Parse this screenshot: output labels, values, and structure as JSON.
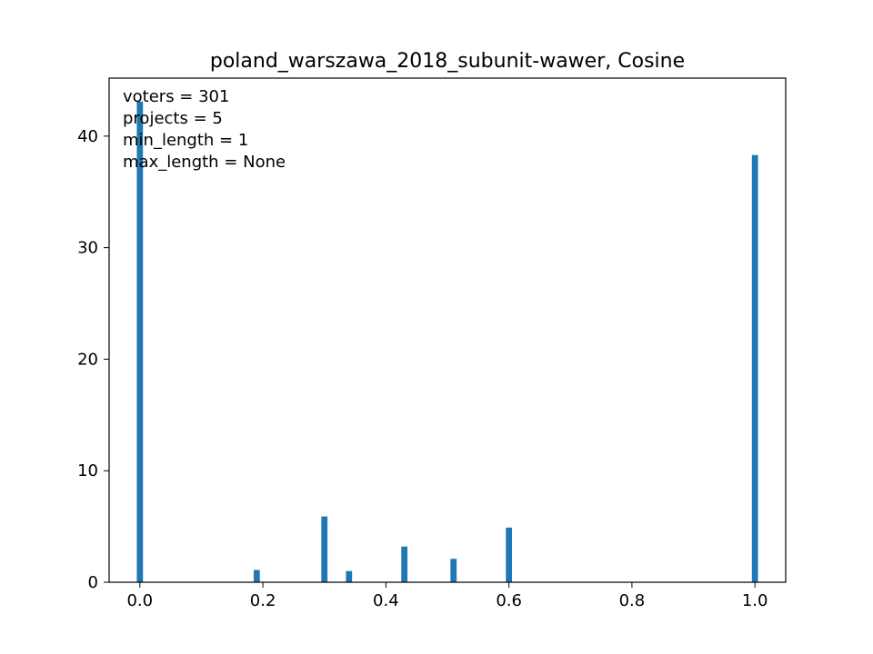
{
  "chart_data": {
    "type": "bar",
    "title": "poland_warszawa_2018_subunit-wawer, Cosine",
    "xlabel": "",
    "ylabel": "",
    "xlim": [
      -0.05,
      1.05
    ],
    "ylim": [
      0,
      45.2
    ],
    "xticks": [
      0.0,
      0.2,
      0.4,
      0.6,
      0.8,
      1.0
    ],
    "xtick_labels": [
      "0.0",
      "0.2",
      "0.4",
      "0.6",
      "0.8",
      "1.0"
    ],
    "yticks": [
      0,
      10,
      20,
      30,
      40
    ],
    "ytick_labels": [
      "0",
      "10",
      "20",
      "30",
      "40"
    ],
    "bar_width": 0.01,
    "color": "#1f77b4",
    "grid": false,
    "annotations": [
      "voters = 301",
      "projects = 5",
      "min_length = 1",
      "max_length = None"
    ],
    "bars": [
      {
        "x": 0.0,
        "value": 43.1
      },
      {
        "x": 0.19,
        "value": 1.1
      },
      {
        "x": 0.3,
        "value": 5.9
      },
      {
        "x": 0.34,
        "value": 1.0
      },
      {
        "x": 0.43,
        "value": 3.2
      },
      {
        "x": 0.51,
        "value": 2.1
      },
      {
        "x": 0.6,
        "value": 4.9
      },
      {
        "x": 1.0,
        "value": 38.3
      }
    ]
  }
}
